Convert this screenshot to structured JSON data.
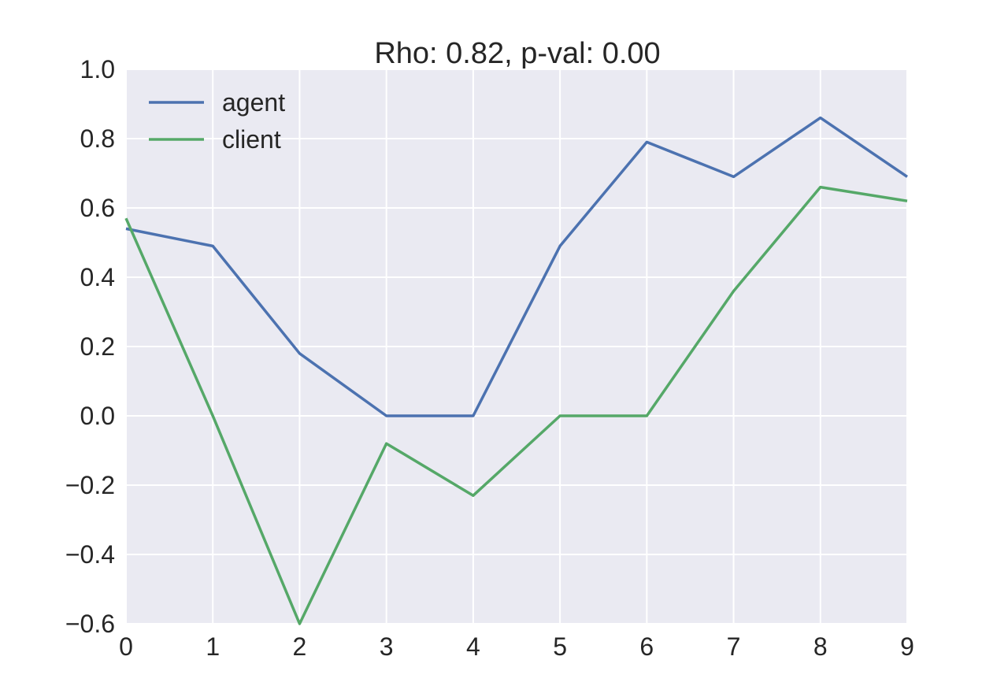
{
  "chart_data": {
    "type": "line",
    "title": "Rho: 0.82, p-val: 0.00",
    "xlabel": "",
    "ylabel": "",
    "x": [
      0,
      1,
      2,
      3,
      4,
      5,
      6,
      7,
      8,
      9
    ],
    "xlim": [
      0,
      9
    ],
    "ylim": [
      -0.6,
      1.0
    ],
    "xticks": [
      0,
      1,
      2,
      3,
      4,
      5,
      6,
      7,
      8,
      9
    ],
    "xtick_labels": [
      "0",
      "1",
      "2",
      "3",
      "4",
      "5",
      "6",
      "7",
      "8",
      "9"
    ],
    "yticks": [
      -0.6,
      -0.4,
      -0.2,
      0.0,
      0.2,
      0.4,
      0.6,
      0.8,
      1.0
    ],
    "ytick_labels": [
      "−0.6",
      "−0.4",
      "−0.2",
      "0.0",
      "0.2",
      "0.4",
      "0.6",
      "0.8",
      "1.0"
    ],
    "grid": true,
    "legend_position": "top-left",
    "background_color": "#EAEAF2",
    "grid_color": "#FFFFFF",
    "series": [
      {
        "name": "agent",
        "color": "#4C72B0",
        "values": [
          0.54,
          0.49,
          0.18,
          0.0,
          0.0,
          0.49,
          0.79,
          0.69,
          0.86,
          0.69
        ]
      },
      {
        "name": "client",
        "color": "#55A868",
        "values": [
          0.57,
          0.0,
          -0.6,
          -0.08,
          -0.23,
          0.0,
          0.0,
          0.36,
          0.66,
          0.62
        ]
      }
    ]
  }
}
